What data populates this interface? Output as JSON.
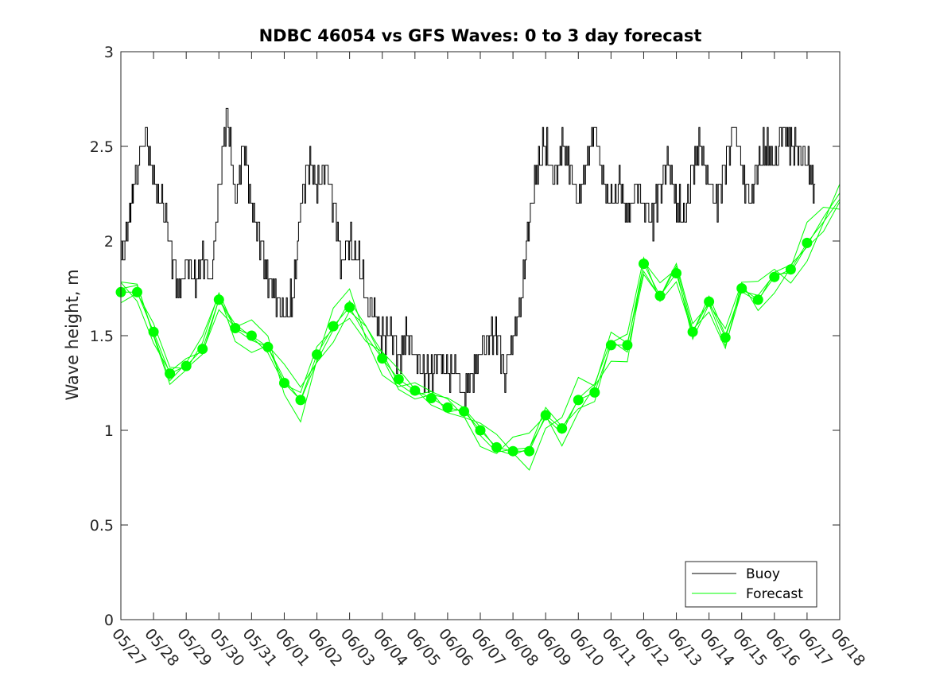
{
  "chart_data": {
    "type": "line",
    "title": "NDBC 46054 vs GFS Waves: 0 to 3 day forecast",
    "xlabel": "",
    "ylabel": "Wave height, m",
    "ylim": [
      0,
      3
    ],
    "yticks": [
      0,
      0.5,
      1,
      1.5,
      2,
      2.5,
      3
    ],
    "ytick_labels": [
      "0",
      "0.5",
      "1",
      "1.5",
      "2",
      "2.5",
      "3"
    ],
    "xlim": [
      "05/27",
      "06/18"
    ],
    "xticks": [
      "05/27",
      "05/28",
      "05/29",
      "05/30",
      "05/31",
      "06/01",
      "06/02",
      "06/03",
      "06/04",
      "06/05",
      "06/06",
      "06/07",
      "06/08",
      "06/09",
      "06/10",
      "06/11",
      "06/12",
      "06/13",
      "06/14",
      "06/15",
      "06/16",
      "06/17",
      "06/18"
    ],
    "grid": false,
    "legend": {
      "position": "bottom-right",
      "entries": [
        "Buoy",
        "Forecast"
      ]
    },
    "colors": {
      "buoy": "#000000",
      "forecast": "#00ff00",
      "axis": "#262626"
    },
    "series": [
      {
        "name": "Buoy",
        "x": [
          0,
          0.25,
          0.4,
          0.75,
          1.0,
          1.25,
          1.5,
          1.75,
          2.0,
          2.25,
          2.5,
          2.75,
          3.0,
          3.25,
          3.5,
          3.75,
          4.0,
          4.25,
          4.5,
          4.75,
          5.0,
          5.25,
          5.5,
          5.75,
          6.0,
          6.25,
          6.5,
          6.75,
          7.0,
          7.25,
          7.5,
          7.75,
          8.0,
          8.25,
          8.5,
          8.75,
          9.0,
          9.25,
          9.5,
          9.75,
          10.0,
          10.25,
          10.5,
          10.75,
          11.0,
          11.25,
          11.5,
          11.75,
          12.0,
          12.25,
          12.5,
          12.75,
          13.0,
          13.25,
          13.5,
          13.75,
          14.0,
          14.25,
          14.5,
          14.75,
          15.0,
          15.25,
          15.5,
          15.75,
          16.0,
          16.25,
          16.5,
          16.75,
          17.0,
          17.25,
          17.5,
          17.75,
          18.0,
          18.25,
          18.5,
          18.75,
          19.0,
          19.25,
          19.5,
          19.75,
          20.0,
          20.25,
          20.5,
          20.75,
          21.0,
          21.25
        ],
        "y": [
          1.9,
          2.1,
          2.3,
          2.6,
          2.3,
          2.2,
          2.0,
          1.7,
          1.9,
          1.8,
          1.9,
          1.8,
          2.3,
          2.7,
          2.2,
          2.5,
          2.2,
          2.0,
          1.8,
          1.7,
          1.6,
          1.7,
          2.2,
          2.4,
          2.3,
          2.4,
          2.2,
          1.9,
          2.0,
          1.9,
          1.7,
          1.6,
          1.5,
          1.5,
          1.4,
          1.5,
          1.4,
          1.3,
          1.3,
          1.4,
          1.3,
          1.3,
          1.2,
          1.3,
          1.4,
          1.5,
          1.5,
          1.3,
          1.5,
          1.7,
          2.1,
          2.4,
          2.5,
          2.3,
          2.5,
          2.4,
          2.2,
          2.4,
          2.6,
          2.3,
          2.2,
          2.3,
          2.1,
          2.3,
          2.2,
          2.1,
          2.3,
          2.4,
          2.2,
          2.1,
          2.4,
          2.5,
          2.3,
          2.2,
          2.4,
          2.6,
          2.4,
          2.2,
          2.4,
          2.5,
          2.4,
          2.6,
          2.5,
          2.5,
          2.4,
          2.3
        ]
      },
      {
        "name": "Forecast",
        "x": [
          0,
          0.5,
          1.0,
          1.5,
          2.0,
          2.5,
          3.0,
          3.5,
          4.0,
          4.5,
          5.0,
          5.5,
          6.0,
          6.5,
          7.0,
          7.5,
          8.0,
          8.5,
          9.0,
          9.5,
          10.0,
          10.5,
          11.0,
          11.5,
          12.0,
          12.5,
          13.0,
          13.5,
          14.0,
          14.5,
          15.0,
          15.5,
          16.0,
          16.5,
          17.0,
          17.5,
          18.0,
          18.5,
          19.0,
          19.5,
          20.0,
          20.5,
          21.0,
          21.5,
          22.0
        ],
        "y": [
          1.73,
          1.73,
          1.52,
          1.3,
          1.34,
          1.43,
          1.69,
          1.54,
          1.5,
          1.44,
          1.25,
          1.16,
          1.4,
          1.55,
          1.65,
          1.5,
          1.38,
          1.27,
          1.21,
          1.17,
          1.12,
          1.1,
          1.0,
          0.91,
          0.89,
          0.89,
          1.08,
          1.01,
          1.16,
          1.2,
          1.45,
          1.45,
          1.88,
          1.71,
          1.83,
          1.52,
          1.68,
          1.49,
          1.75,
          1.69,
          1.81,
          1.85,
          1.99,
          2.1,
          2.22
        ]
      }
    ],
    "markers": {
      "name": "Forecast",
      "x": [
        0,
        0.5,
        1.0,
        1.5,
        2.0,
        2.5,
        3.0,
        3.5,
        4.0,
        4.5,
        5.0,
        5.5,
        6.0,
        6.5,
        7.0,
        8.0,
        8.5,
        9.0,
        9.5,
        10.0,
        10.5,
        11.0,
        11.5,
        12.0,
        12.5,
        13.0,
        13.5,
        14.0,
        14.5,
        15.0,
        15.5,
        16.0,
        16.5,
        17.0,
        17.5,
        18.0,
        18.5,
        19.0,
        19.5,
        20.0,
        20.5,
        21.0
      ],
      "y": [
        1.73,
        1.73,
        1.52,
        1.3,
        1.34,
        1.43,
        1.69,
        1.54,
        1.5,
        1.44,
        1.25,
        1.16,
        1.4,
        1.55,
        1.65,
        1.38,
        1.27,
        1.21,
        1.17,
        1.12,
        1.1,
        1.0,
        0.91,
        0.89,
        0.89,
        1.08,
        1.01,
        1.16,
        1.2,
        1.45,
        1.45,
        1.88,
        1.71,
        1.83,
        1.52,
        1.68,
        1.49,
        1.75,
        1.69,
        1.81,
        1.85,
        1.99
      ]
    }
  }
}
